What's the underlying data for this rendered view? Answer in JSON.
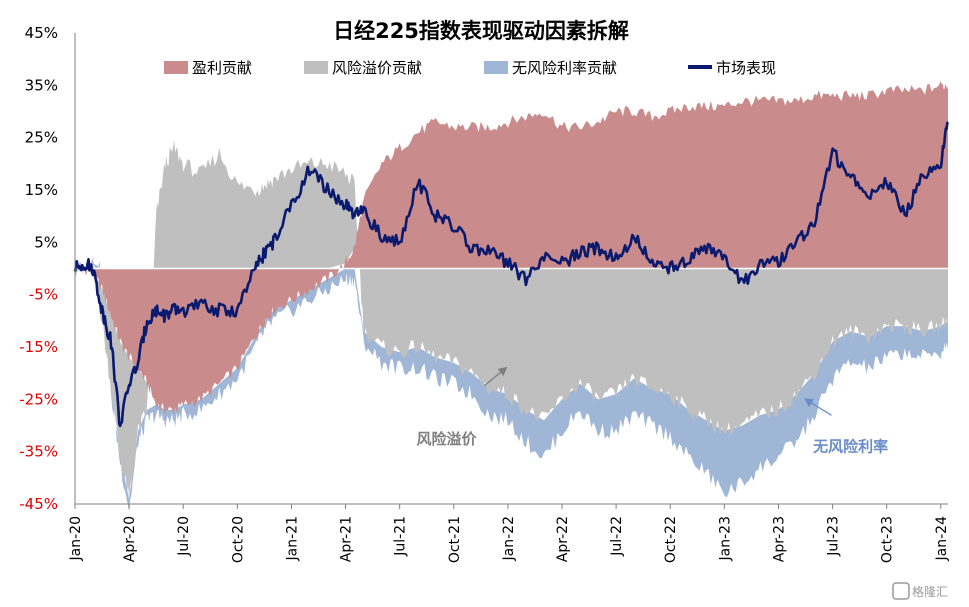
{
  "chart_data": {
    "type": "area",
    "title": "日经225指数表现驱动因素拆解",
    "ylim": [
      -45,
      45
    ],
    "yticks": [
      "45%",
      "35%",
      "25%",
      "15%",
      "5%",
      "-5%",
      "-15%",
      "-25%",
      "-35%",
      "-45%"
    ],
    "ytick_values": [
      45,
      35,
      25,
      15,
      5,
      -5,
      -15,
      -25,
      -35,
      -45
    ],
    "positive_tick_color": "#000000",
    "negative_tick_color": "#e00000",
    "xticks": [
      "Jan-20",
      "Apr-20",
      "Jul-20",
      "Oct-20",
      "Jan-21",
      "Apr-21",
      "Jul-21",
      "Oct-21",
      "Jan-22",
      "Apr-22",
      "Jul-22",
      "Oct-22",
      "Jan-23",
      "Apr-23",
      "Jul-23",
      "Oct-23",
      "Jan-24"
    ],
    "xtick_months": [
      0,
      3,
      6,
      9,
      12,
      15,
      18,
      21,
      24,
      27,
      30,
      33,
      36,
      39,
      42,
      45,
      48
    ],
    "legend_position": "top",
    "months": [
      0,
      0.5,
      1,
      1.5,
      2,
      2.5,
      3,
      3.5,
      4,
      4.5,
      5,
      5.5,
      6,
      7,
      8,
      9,
      10,
      10.5,
      11,
      12,
      13,
      14,
      15,
      15.5,
      16,
      17,
      18,
      19,
      20,
      21,
      22,
      23,
      24,
      25,
      26,
      27,
      28,
      29,
      30,
      31,
      32,
      33,
      34,
      35,
      36,
      37,
      38,
      39,
      40,
      41,
      42,
      43,
      44,
      45,
      46,
      47,
      48,
      48.4
    ],
    "series": [
      {
        "name": "盈利贡献",
        "color": "#c98b8b",
        "values": [
          0,
          0,
          -1,
          -4,
          -9,
          -14,
          -17,
          -19,
          -22,
          -26,
          -27,
          -27,
          -26,
          -25,
          -22,
          -19,
          -13,
          -10,
          -8,
          -6,
          -4,
          -2,
          1,
          4,
          13,
          20,
          23,
          26,
          28,
          27,
          27,
          27,
          28,
          29,
          30,
          27,
          27,
          28,
          30,
          30,
          29,
          30,
          31,
          31,
          31,
          32,
          32,
          32,
          32,
          33,
          33,
          33,
          33,
          34,
          34,
          34,
          35,
          35
        ]
      },
      {
        "name": "风险溢价贡献",
        "color": "#bfbfbf",
        "values": [
          0,
          0,
          1,
          -6,
          -14,
          -22,
          -27,
          -12,
          -5,
          10,
          20,
          23,
          20,
          18,
          22,
          16,
          15,
          16,
          17,
          19,
          20,
          20,
          17,
          12,
          -12,
          -15,
          -16,
          -15,
          -17,
          -18,
          -20,
          -23,
          -24,
          -27,
          -29,
          -25,
          -22,
          -25,
          -24,
          -21,
          -23,
          -24,
          -27,
          -29,
          -31,
          -30,
          -28,
          -27,
          -24,
          -20,
          -14,
          -12,
          -13,
          -11,
          -11,
          -12,
          -11,
          -10
        ]
      },
      {
        "name": "无风险利率贡献",
        "color": "#9fb6d6",
        "values": [
          0,
          0,
          0,
          0,
          -1,
          -1,
          -2,
          -2,
          -2,
          -2,
          -2,
          -2,
          -2,
          -2,
          -2,
          -2,
          -2,
          -2,
          -2,
          -2,
          -2,
          -2,
          -2,
          -2,
          -2,
          -3,
          -3,
          -4,
          -4,
          -4,
          -4,
          -5,
          -5,
          -6,
          -7,
          -6,
          -5,
          -6,
          -7,
          -7,
          -7,
          -8,
          -9,
          -10,
          -12,
          -11,
          -10,
          -9,
          -9,
          -8,
          -7,
          -6,
          -6,
          -6,
          -5,
          -5,
          -5,
          -4
        ]
      },
      {
        "name": "市场表现",
        "color": "#0a1a6e",
        "values": [
          0,
          1,
          0,
          -8,
          -14,
          -30,
          -22,
          -18,
          -10,
          -8,
          -9,
          -8,
          -8,
          -7,
          -8,
          -8,
          0,
          3,
          5,
          12,
          19,
          15,
          12,
          10,
          11,
          6,
          5,
          17,
          10,
          8,
          4,
          3,
          1,
          -2,
          2,
          1,
          3,
          4,
          2,
          6,
          1,
          0,
          2,
          4,
          2,
          -3,
          1,
          1,
          5,
          9,
          22,
          18,
          14,
          17,
          10,
          18,
          20,
          28
        ]
      }
    ],
    "annotations": [
      {
        "text": "风险溢价",
        "color": "#7f7f7f",
        "arrow_month": 23.9,
        "arrow_value": -19
      },
      {
        "text": "无风险利率",
        "color": "#6a8cc8",
        "arrow_month": 40.5,
        "arrow_value": -25
      }
    ]
  },
  "watermark": "格隆汇"
}
